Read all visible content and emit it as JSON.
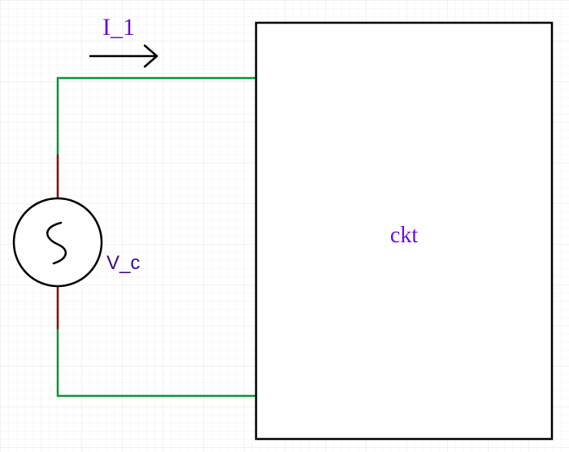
{
  "labels": {
    "current": "I_1",
    "source": "V_c",
    "block": "ckt"
  },
  "colors": {
    "wire": "#00992e",
    "lead": "#8b0000",
    "label": "#6a0dde",
    "source_label": "#3a0a8c",
    "stroke": "#000000",
    "grid": "#ececec"
  },
  "icons": {
    "source_symbol": "ac-source-icon",
    "current_arrow": "arrow-right-icon"
  }
}
